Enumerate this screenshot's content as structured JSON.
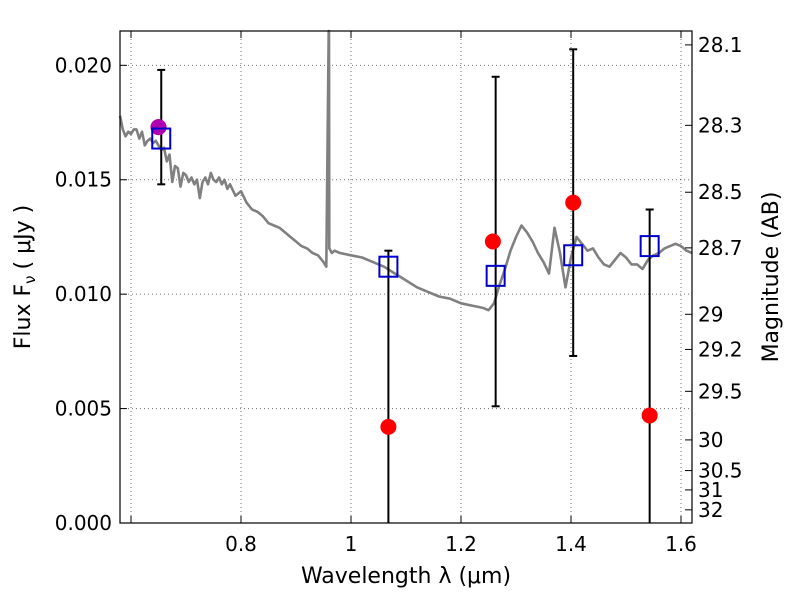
{
  "chart_data": {
    "type": "scatter",
    "title": "",
    "xlabel": "Wavelength  λ (μm)",
    "ylabel": "Flux  F",
    "ylabel_sub": "ν",
    "ylabel_unit": "( μJy )",
    "y2label": "Magnitude (AB)",
    "xlim": [
      0.58,
      1.62
    ],
    "ylim": [
      0.0,
      0.0215
    ],
    "grid": true,
    "x_ticks": [
      0.6,
      0.8,
      1.0,
      1.2,
      1.4,
      1.6
    ],
    "x_tick_labels": [
      "",
      "0.8",
      "1",
      "1.2",
      "1.4",
      "1.6"
    ],
    "y_ticks": [
      0.0,
      0.005,
      0.01,
      0.015,
      0.02
    ],
    "y_tick_labels": [
      "0.000",
      "0.005",
      "0.010",
      "0.015",
      "0.020"
    ],
    "y2_ticks": [
      {
        "mag": 28.1,
        "label": "28.1"
      },
      {
        "mag": 28.3,
        "label": "28.3"
      },
      {
        "mag": 28.5,
        "label": "28.5"
      },
      {
        "mag": 28.7,
        "label": "28.7"
      },
      {
        "mag": 29.0,
        "label": "29"
      },
      {
        "mag": 29.2,
        "label": "29.2"
      },
      {
        "mag": 29.5,
        "label": "29.5"
      },
      {
        "mag": 30.0,
        "label": "30"
      },
      {
        "mag": 30.5,
        "label": "30.5"
      },
      {
        "mag": 31.0,
        "label": "31"
      },
      {
        "mag": 32.0,
        "label": "32"
      }
    ],
    "model_spectrum": {
      "color": "#808080",
      "x": [
        0.58,
        0.585,
        0.59,
        0.595,
        0.6,
        0.605,
        0.61,
        0.615,
        0.62,
        0.625,
        0.63,
        0.635,
        0.64,
        0.645,
        0.65,
        0.655,
        0.66,
        0.665,
        0.67,
        0.675,
        0.68,
        0.685,
        0.69,
        0.695,
        0.7,
        0.705,
        0.71,
        0.715,
        0.72,
        0.725,
        0.73,
        0.735,
        0.74,
        0.745,
        0.75,
        0.755,
        0.76,
        0.765,
        0.77,
        0.775,
        0.78,
        0.79,
        0.8,
        0.81,
        0.82,
        0.83,
        0.84,
        0.85,
        0.86,
        0.87,
        0.88,
        0.89,
        0.9,
        0.91,
        0.92,
        0.93,
        0.94,
        0.95,
        0.955,
        0.9595,
        0.96,
        0.9605,
        0.965,
        0.97,
        0.98,
        1.0,
        1.02,
        1.04,
        1.06,
        1.08,
        1.1,
        1.12,
        1.14,
        1.16,
        1.18,
        1.2,
        1.22,
        1.24,
        1.25,
        1.26,
        1.27,
        1.28,
        1.29,
        1.3,
        1.31,
        1.32,
        1.33,
        1.34,
        1.35,
        1.36,
        1.37,
        1.38,
        1.39,
        1.4,
        1.41,
        1.42,
        1.43,
        1.44,
        1.45,
        1.46,
        1.47,
        1.48,
        1.49,
        1.5,
        1.51,
        1.52,
        1.53,
        1.54,
        1.55,
        1.56,
        1.57,
        1.58,
        1.59,
        1.6,
        1.61,
        1.62
      ],
      "y": [
        0.0178,
        0.0172,
        0.0169,
        0.0171,
        0.017,
        0.0172,
        0.0172,
        0.0168,
        0.0171,
        0.0165,
        0.0167,
        0.0168,
        0.0166,
        0.0167,
        0.0165,
        0.0163,
        0.0164,
        0.0158,
        0.0161,
        0.0149,
        0.0156,
        0.0155,
        0.0147,
        0.0153,
        0.0152,
        0.0149,
        0.0151,
        0.0148,
        0.015,
        0.0142,
        0.0149,
        0.0151,
        0.0148,
        0.0153,
        0.015,
        0.0149,
        0.0151,
        0.0148,
        0.015,
        0.0146,
        0.0148,
        0.0143,
        0.0145,
        0.014,
        0.0137,
        0.0136,
        0.0134,
        0.0131,
        0.013,
        0.0129,
        0.0127,
        0.0125,
        0.0123,
        0.0121,
        0.012,
        0.0118,
        0.0117,
        0.0114,
        0.0112,
        0.0215,
        0.0215,
        0.012,
        0.0118,
        0.0119,
        0.0118,
        0.0117,
        0.0116,
        0.0114,
        0.0112,
        0.0109,
        0.0106,
        0.0103,
        0.0101,
        0.0099,
        0.0098,
        0.0096,
        0.0095,
        0.0094,
        0.0093,
        0.0096,
        0.0104,
        0.0111,
        0.0119,
        0.0125,
        0.013,
        0.0127,
        0.0123,
        0.0118,
        0.0114,
        0.0109,
        0.0129,
        0.0118,
        0.0103,
        0.0116,
        0.0125,
        0.0122,
        0.0119,
        0.012,
        0.0116,
        0.0113,
        0.0112,
        0.0115,
        0.0118,
        0.0116,
        0.0113,
        0.0113,
        0.0111,
        0.0115,
        0.0117,
        0.0118,
        0.012,
        0.0121,
        0.0122,
        0.0121,
        0.0119,
        0.0118
      ]
    },
    "series": [
      {
        "color": "#ff0000",
        "marker": "circle",
        "x": [
          0.65,
          1.068,
          1.258,
          1.404,
          1.543
        ],
        "y": [
          0.0173,
          0.0042,
          0.0123,
          0.014,
          0.0047
        ]
      },
      {
        "color": "#0000cc",
        "marker": "square-open",
        "x": [
          0.655,
          1.068,
          1.263,
          1.404,
          1.543
        ],
        "y": [
          0.0168,
          0.0112,
          0.0108,
          0.0117,
          0.0121
        ],
        "err_lo": [
          0.0148,
          0.0,
          0.0051,
          0.0073,
          0.0
        ],
        "err_hi": [
          0.0198,
          0.0119,
          0.0195,
          0.0207,
          0.0137
        ]
      }
    ],
    "overlap_point": {
      "color": "#b000b0",
      "x": 0.65,
      "y": 0.0173
    }
  }
}
